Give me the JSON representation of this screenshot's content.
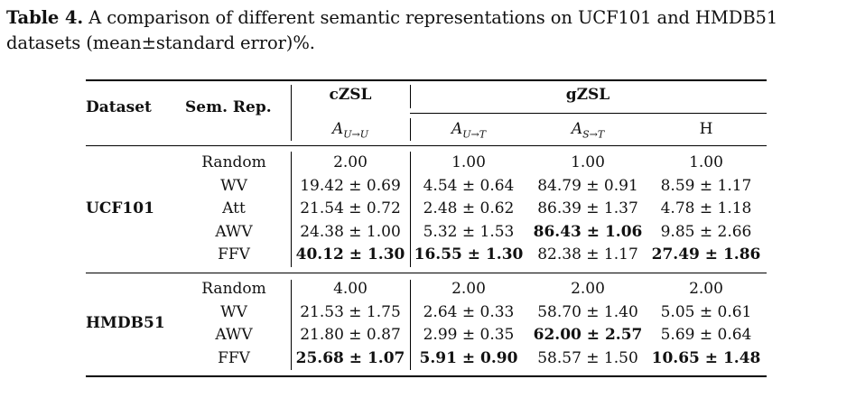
{
  "caption": {
    "label": "Table 4.",
    "text": " A comparison of different semantic representations on UCF101 and HMDB51 datasets (mean±standard error)%."
  },
  "header": {
    "dataset": "Dataset",
    "sem_rep": "Sem. Rep.",
    "czsl": "cZSL",
    "gzsl": "gZSL",
    "col_czsl_sub": "U→U",
    "col_u_t_sub": "U→T",
    "col_s_t_sub": "S→T",
    "col_a": "A",
    "col_h": "H"
  },
  "groups": [
    {
      "name": "UCF101",
      "rows": [
        {
          "rep": "Random",
          "czsl": "2.00",
          "ut": "1.00",
          "st": "1.00",
          "h": "1.00",
          "bold": []
        },
        {
          "rep": "WV",
          "czsl": "19.42 ± 0.69",
          "ut": "4.54 ± 0.64",
          "st": "84.79 ± 0.91",
          "h": "8.59 ± 1.17",
          "bold": []
        },
        {
          "rep": "Att",
          "czsl": "21.54 ± 0.72",
          "ut": "2.48 ± 0.62",
          "st": "86.39 ± 1.37",
          "h": "4.78 ± 1.18",
          "bold": []
        },
        {
          "rep": "AWV",
          "czsl": "24.38 ± 1.00",
          "ut": "5.32 ± 1.53",
          "st": "86.43 ± 1.06",
          "h": "9.85 ± 2.66",
          "bold": [
            "st"
          ]
        },
        {
          "rep": "FFV",
          "czsl": "40.12 ± 1.30",
          "ut": "16.55 ± 1.30",
          "st": "82.38 ± 1.17",
          "h": "27.49 ± 1.86",
          "bold": [
            "czsl",
            "ut",
            "h"
          ]
        }
      ]
    },
    {
      "name": "HMDB51",
      "rows": [
        {
          "rep": "Random",
          "czsl": "4.00",
          "ut": "2.00",
          "st": "2.00",
          "h": "2.00",
          "bold": []
        },
        {
          "rep": "WV",
          "czsl": "21.53 ± 1.75",
          "ut": "2.64 ± 0.33",
          "st": "58.70 ± 1.40",
          "h": "5.05 ± 0.61",
          "bold": []
        },
        {
          "rep": "AWV",
          "czsl": "21.80 ± 0.87",
          "ut": "2.99 ± 0.35",
          "st": "62.00 ± 2.57",
          "h": "5.69 ± 0.64",
          "bold": [
            "st"
          ]
        },
        {
          "rep": "FFV",
          "czsl": "25.68 ± 1.07",
          "ut": "5.91 ± 0.90",
          "st": "58.57 ± 1.50",
          "h": "10.65 ± 1.48",
          "bold": [
            "czsl",
            "ut",
            "h"
          ]
        }
      ]
    }
  ]
}
